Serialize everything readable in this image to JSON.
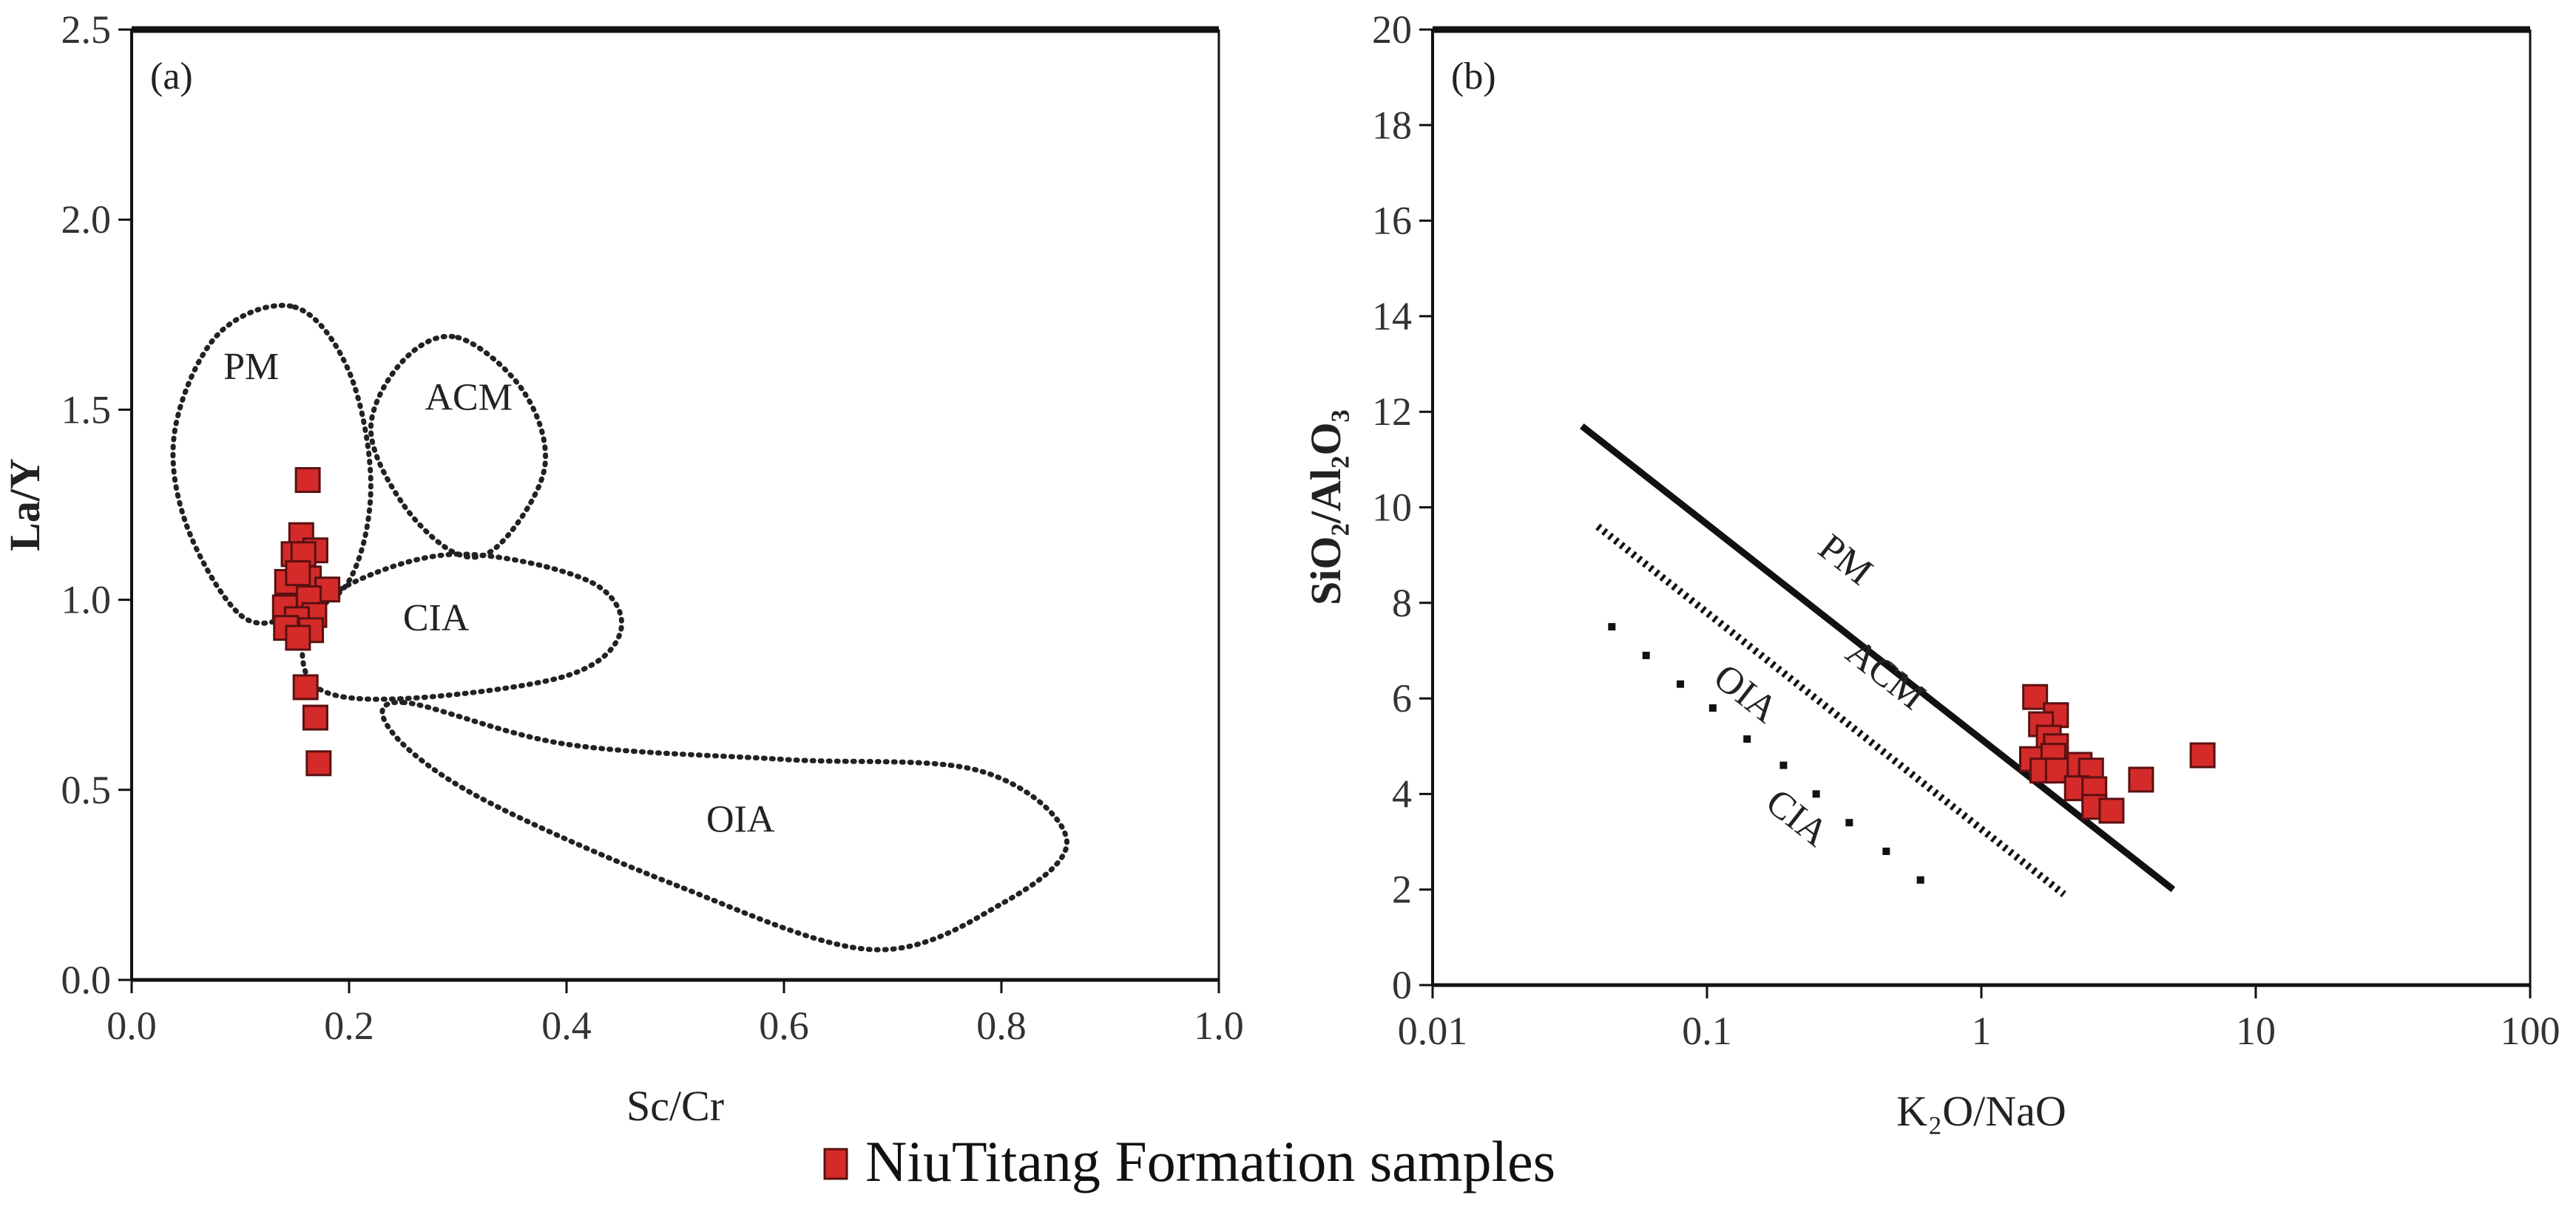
{
  "legend": {
    "label": "NiuTitang Formation samples",
    "marker_color": "#d42a2a"
  },
  "chart_data": [
    {
      "type": "scatter",
      "panel_label": "(a)",
      "xlabel": "Sc/Cr",
      "ylabel": "La/Y",
      "xlim": [
        0,
        1.0
      ],
      "ylim": [
        0,
        2.5
      ],
      "xticks": [
        "0.0",
        "0.2",
        "0.4",
        "0.6",
        "0.8",
        "1.0"
      ],
      "yticks": [
        "0.0",
        "0.5",
        "1.0",
        "1.5",
        "2.0",
        "2.5"
      ],
      "x_scale": "linear",
      "grid": false,
      "points": [
        [
          0.162,
          1.315
        ],
        [
          0.156,
          1.17
        ],
        [
          0.149,
          1.12
        ],
        [
          0.169,
          1.13
        ],
        [
          0.158,
          1.12
        ],
        [
          0.143,
          1.047
        ],
        [
          0.163,
          1.056
        ],
        [
          0.153,
          1.07
        ],
        [
          0.18,
          1.027
        ],
        [
          0.163,
          1.004
        ],
        [
          0.141,
          0.98
        ],
        [
          0.168,
          0.96
        ],
        [
          0.152,
          0.949
        ],
        [
          0.142,
          0.926
        ],
        [
          0.165,
          0.92
        ],
        [
          0.153,
          0.9
        ],
        [
          0.16,
          0.77
        ],
        [
          0.169,
          0.69
        ],
        [
          0.172,
          0.57
        ]
      ],
      "fields": [
        {
          "name": "PM",
          "label_at": [
            0.11,
            1.58
          ],
          "outline": [
            [
              0.15,
              1.77
            ],
            [
              0.2,
              1.6
            ],
            [
              0.22,
              1.3
            ],
            [
              0.2,
              1.05
            ],
            [
              0.15,
              0.96
            ],
            [
              0.1,
              0.96
            ],
            [
              0.05,
              1.2
            ],
            [
              0.04,
              1.45
            ],
            [
              0.08,
              1.7
            ]
          ]
        },
        {
          "name": "ACM",
          "label_at": [
            0.31,
            1.5
          ],
          "outline": [
            [
              0.3,
              1.69
            ],
            [
              0.36,
              1.55
            ],
            [
              0.38,
              1.35
            ],
            [
              0.34,
              1.15
            ],
            [
              0.3,
              1.12
            ],
            [
              0.25,
              1.25
            ],
            [
              0.22,
              1.45
            ],
            [
              0.25,
              1.63
            ]
          ]
        },
        {
          "name": "CIA",
          "label_at": [
            0.28,
            0.92
          ],
          "outline": [
            [
              0.3,
              1.12
            ],
            [
              0.42,
              1.05
            ],
            [
              0.45,
              0.92
            ],
            [
              0.4,
              0.8
            ],
            [
              0.25,
              0.74
            ],
            [
              0.17,
              0.77
            ],
            [
              0.16,
              0.92
            ],
            [
              0.2,
              1.04
            ]
          ]
        },
        {
          "name": "OIA",
          "label_at": [
            0.56,
            0.39
          ],
          "outline": [
            [
              0.25,
              0.73
            ],
            [
              0.4,
              0.62
            ],
            [
              0.6,
              0.58
            ],
            [
              0.78,
              0.55
            ],
            [
              0.86,
              0.37
            ],
            [
              0.8,
              0.2
            ],
            [
              0.68,
              0.08
            ],
            [
              0.5,
              0.25
            ],
            [
              0.32,
              0.48
            ],
            [
              0.24,
              0.65
            ]
          ]
        }
      ]
    },
    {
      "type": "scatter",
      "panel_label": "(b)",
      "xlabel": "K₂O/NaO",
      "ylabel": "SiO₂/Al₂O₃",
      "xlim": [
        0.01,
        100
      ],
      "ylim": [
        0,
        20
      ],
      "x_scale": "log",
      "xticks": [
        "0.01",
        "0.1",
        "1",
        "10",
        "100"
      ],
      "yticks": [
        "0",
        "2",
        "4",
        "6",
        "8",
        "10",
        "12",
        "14",
        "16",
        "18",
        "20"
      ],
      "grid": false,
      "points": [
        [
          1.57,
          6.03
        ],
        [
          1.87,
          5.65
        ],
        [
          1.65,
          5.46
        ],
        [
          1.76,
          5.18
        ],
        [
          1.87,
          5.0
        ],
        [
          1.53,
          4.73
        ],
        [
          1.83,
          4.8
        ],
        [
          1.67,
          4.49
        ],
        [
          1.9,
          4.49
        ],
        [
          2.28,
          4.61
        ],
        [
          2.51,
          4.49
        ],
        [
          2.23,
          4.12
        ],
        [
          2.58,
          4.1
        ],
        [
          2.58,
          3.73
        ],
        [
          2.98,
          3.65
        ],
        [
          3.82,
          4.3
        ],
        [
          6.4,
          4.81
        ]
      ],
      "boundaries": [
        {
          "name": "PM",
          "style": "solid",
          "from": [
            0.035,
            11.7
          ],
          "to": [
            5,
            2.0
          ],
          "label_at": [
            0.3,
            8.7
          ]
        },
        {
          "name": "ACM",
          "style": "dotted",
          "from": [
            0.04,
            9.6
          ],
          "to": [
            2,
            1.9
          ],
          "label_at": [
            0.42,
            6.3
          ]
        },
        {
          "name": "OIA",
          "style": "none",
          "label_at": [
            0.13,
            5.9
          ]
        },
        {
          "name": "CIA",
          "style": "sparse-dots",
          "dots": [
            [
              0.045,
              7.5
            ],
            [
              0.06,
              6.9
            ],
            [
              0.08,
              6.3
            ],
            [
              0.105,
              5.8
            ],
            [
              0.14,
              5.15
            ],
            [
              0.19,
              4.6
            ],
            [
              0.25,
              4.0
            ],
            [
              0.33,
              3.4
            ],
            [
              0.45,
              2.8
            ],
            [
              0.6,
              2.2
            ]
          ],
          "label_at": [
            0.2,
            3.3
          ]
        }
      ]
    }
  ]
}
